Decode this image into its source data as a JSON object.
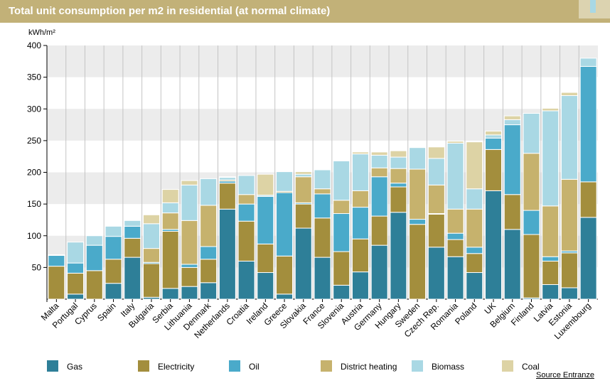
{
  "header": {
    "title": "Total unit consumption per m2 in residential (at normal climate)"
  },
  "source_label": "Source Entranze",
  "colors": {
    "Gas": "#2e7f98",
    "Electricity": "#a38e3d",
    "Oil": "#4aaaca",
    "District heating": "#c6b26d",
    "Biomass": "#a9d8e4",
    "Coal": "#ddd3a5",
    "band": "#ececec",
    "gridline": "#ffffff",
    "bar_border": "#ffffff"
  },
  "chart_data": {
    "type": "bar",
    "stacked": true,
    "ylabel": "kWh/m²",
    "ylim": [
      0,
      400
    ],
    "yticks": [
      50,
      100,
      150,
      200,
      250,
      300,
      350,
      400
    ],
    "grid": "alternating horizontal bands",
    "legend_position": "bottom",
    "categories": [
      "Malta",
      "Portugal",
      "Cyprus",
      "Spain",
      "Italy",
      "Bulgaria",
      "Serbia",
      "Lithuania",
      "Denmark",
      "Netherlands",
      "Croatia",
      "Ireland",
      "Greece",
      "Slovakia",
      "France",
      "Slovenia",
      "Austria",
      "Germany",
      "Hungary",
      "Sweden",
      "Czech Rep.",
      "Romania",
      "Poland",
      "UK",
      "Belgium",
      "Finland",
      "Latvia",
      "Estonia",
      "Luxembourg"
    ],
    "series": [
      {
        "name": "Gas",
        "values": [
          0,
          8,
          0,
          25,
          66,
          3,
          17,
          20,
          26,
          142,
          60,
          42,
          8,
          112,
          66,
          22,
          43,
          85,
          137,
          0,
          82,
          67,
          42,
          171,
          110,
          2,
          23,
          18,
          129
        ]
      },
      {
        "name": "Electricity",
        "values": [
          52,
          33,
          45,
          38,
          30,
          53,
          90,
          30,
          37,
          41,
          63,
          45,
          60,
          38,
          62,
          53,
          52,
          46,
          40,
          118,
          52,
          27,
          30,
          65,
          55,
          100,
          37,
          55,
          56
        ]
      },
      {
        "name": "Oil",
        "values": [
          17,
          16,
          40,
          36,
          19,
          2,
          3,
          5,
          20,
          3,
          27,
          75,
          100,
          2,
          38,
          60,
          50,
          62,
          6,
          8,
          1,
          10,
          10,
          18,
          110,
          38,
          7,
          3,
          182
        ]
      },
      {
        "name": "District heating",
        "values": [
          0,
          0,
          0,
          0,
          0,
          22,
          26,
          69,
          65,
          2,
          15,
          0,
          2,
          41,
          8,
          21,
          26,
          14,
          23,
          79,
          45,
          38,
          60,
          0,
          0,
          90,
          80,
          113,
          0
        ]
      },
      {
        "name": "Biomass",
        "values": [
          1,
          33,
          15,
          16,
          9,
          39,
          16,
          56,
          42,
          4,
          30,
          2,
          31,
          4,
          30,
          62,
          58,
          20,
          18,
          34,
          42,
          104,
          32,
          5,
          8,
          63,
          150,
          132,
          13
        ]
      },
      {
        "name": "Coal",
        "values": [
          0,
          0,
          0,
          0,
          0,
          14,
          21,
          7,
          0,
          1,
          0,
          33,
          0,
          4,
          1,
          0,
          3,
          5,
          10,
          0,
          18,
          3,
          74,
          6,
          6,
          0,
          4,
          5,
          0
        ]
      }
    ]
  }
}
